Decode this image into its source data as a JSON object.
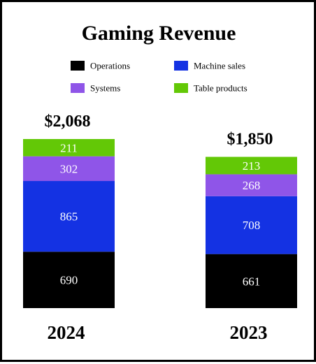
{
  "chart_data": {
    "type": "bar",
    "stacked": true,
    "title": "Gaming Revenue",
    "categories": [
      "2024",
      "2023"
    ],
    "totals": [
      "$2,068",
      "$1,850"
    ],
    "series": [
      {
        "name": "Operations",
        "values": [
          690,
          661
        ],
        "color": "#000000"
      },
      {
        "name": "Machine sales",
        "values": [
          865,
          708
        ],
        "color": "#1432e3"
      },
      {
        "name": "Systems",
        "values": [
          302,
          268
        ],
        "color": "#8f55e8"
      },
      {
        "name": "Table products",
        "values": [
          211,
          213
        ],
        "color": "#63c806"
      }
    ],
    "legend": {
      "position": "top",
      "columns": 2
    },
    "grid": false,
    "show_axes": false
  }
}
